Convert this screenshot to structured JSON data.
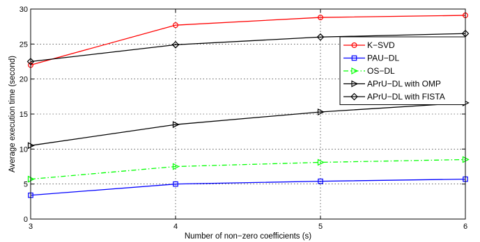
{
  "chart_data": {
    "type": "line",
    "x": [
      3,
      4,
      5,
      6
    ],
    "xlabel": "Number of non−zero coefficients (s)",
    "ylabel": "Average execution time (second)",
    "xlim": [
      3,
      6
    ],
    "ylim": [
      0,
      30
    ],
    "xticks": [
      "3",
      "4",
      "5",
      "6"
    ],
    "yticks": [
      "0",
      "5",
      "10",
      "15",
      "20",
      "25",
      "30"
    ],
    "grid": true,
    "legend_position": "top-right",
    "series": [
      {
        "name": "K−SVD",
        "values": [
          22.0,
          27.7,
          28.8,
          29.1
        ],
        "color": "#ff0000",
        "marker": "circle",
        "dash": "solid"
      },
      {
        "name": "PAU−DL",
        "values": [
          3.4,
          5.0,
          5.4,
          5.7
        ],
        "color": "#0000ff",
        "marker": "square",
        "dash": "solid"
      },
      {
        "name": "OS−DL",
        "values": [
          5.7,
          7.5,
          8.1,
          8.5
        ],
        "color": "#00ff00",
        "marker": "triangle-right",
        "dash": "dashdot"
      },
      {
        "name": "APrU−DL with OMP",
        "values": [
          10.5,
          13.5,
          15.3,
          16.6
        ],
        "color": "#000000",
        "marker": "triangle-right",
        "dash": "solid"
      },
      {
        "name": "APrU−DL with FISTA",
        "values": [
          22.5,
          24.9,
          26.0,
          26.5
        ],
        "color": "#000000",
        "marker": "diamond",
        "dash": "solid"
      }
    ]
  }
}
